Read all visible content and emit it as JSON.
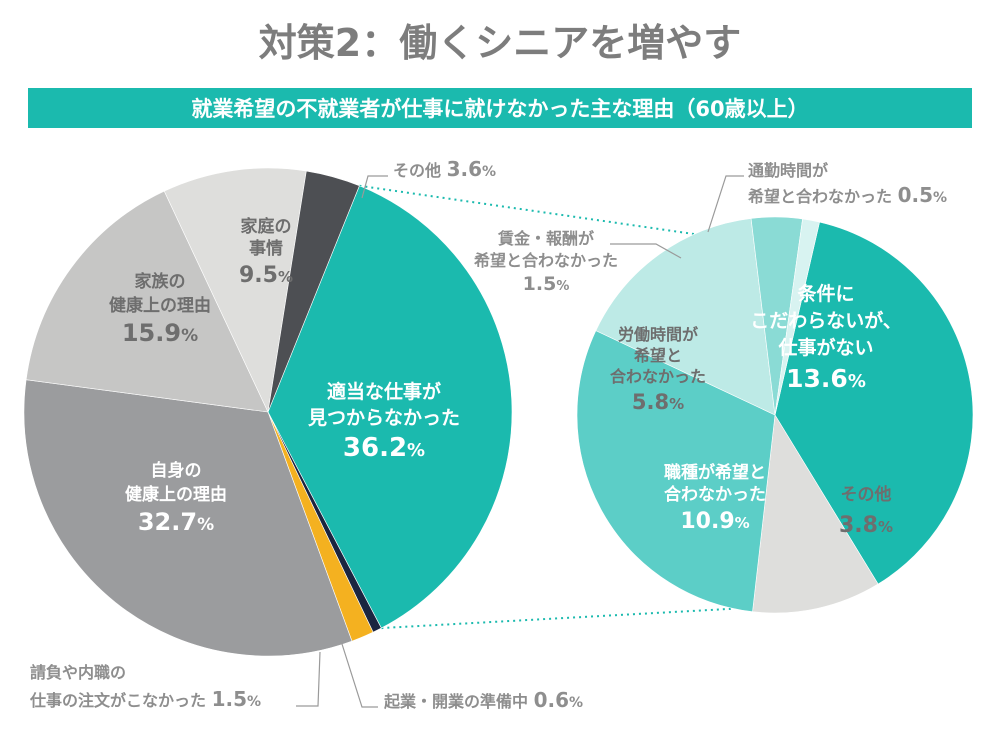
{
  "page": {
    "title": "対策2：働くシニアを増やす",
    "subtitle": "就業希望の不就業者が仕事に就けなかった主な理由（60歳以上）"
  },
  "colors": {
    "teal": "#1BBAAE",
    "banner": "#1BBAAE",
    "title_gray": "#7D7D7D",
    "label_gray": "#8E8E8E"
  },
  "chart_data": [
    {
      "type": "pie",
      "name": "main",
      "start_angle_deg": 22,
      "slices": [
        {
          "key": "s1",
          "label_lines": [
            "適当な仕事が",
            "見つからなかった"
          ],
          "value": 36.2,
          "value_text": "36.2",
          "color": "#1BBAAE",
          "label_color": "#ffffff"
        },
        {
          "key": "s2",
          "label_lines": [
            "起業・開業の準備中"
          ],
          "value": 0.6,
          "value_text": "0.6",
          "color": "#1B2540",
          "label_color": "#8E8E8E",
          "outside": true
        },
        {
          "key": "s3",
          "label_lines": [
            "請負や内職の",
            "仕事の注文がこなかった"
          ],
          "value": 1.5,
          "value_text": "1.5",
          "color": "#F4B120",
          "label_color": "#8E8E8E",
          "outside": true
        },
        {
          "key": "s4",
          "label_lines": [
            "自身の",
            "健康上の理由"
          ],
          "value": 32.7,
          "value_text": "32.7",
          "color": "#9B9C9E",
          "label_color": "#ffffff"
        },
        {
          "key": "s5",
          "label_lines": [
            "家族の",
            "健康上の理由"
          ],
          "value": 15.9,
          "value_text": "15.9",
          "color": "#C6C6C5",
          "label_color": "#6E6E6E"
        },
        {
          "key": "s6",
          "label_lines": [
            "家庭の",
            "事情"
          ],
          "value": 9.5,
          "value_text": "9.5",
          "color": "#DEDEDC",
          "label_color": "#6E6E6E"
        },
        {
          "key": "s7",
          "label_lines": [
            "その他"
          ],
          "value": 3.6,
          "value_text": "3.6",
          "color": "#4D4F53",
          "label_color": "#8E8E8E",
          "outside": true
        }
      ]
    },
    {
      "type": "pie",
      "name": "breakdown",
      "parent": "適当な仕事が見つからなかった",
      "start_angle_deg": 13,
      "slices": [
        {
          "key": "b1",
          "label_lines": [
            "条件に",
            "こだわらないが、",
            "仕事がない"
          ],
          "value": 13.6,
          "value_text": "13.6",
          "color": "#1BBAAE",
          "label_color": "#ffffff"
        },
        {
          "key": "b2",
          "label_lines": [
            "その他"
          ],
          "value": 3.8,
          "value_text": "3.8",
          "color": "#DEDEDC",
          "label_color": "#6E6E6E"
        },
        {
          "key": "b3",
          "label_lines": [
            "職種が希望と",
            "合わなかった"
          ],
          "value": 10.9,
          "value_text": "10.9",
          "color": "#5CCEC7",
          "label_color": "#ffffff"
        },
        {
          "key": "b4",
          "label_lines": [
            "労働時間が",
            "希望と",
            "合わなかった"
          ],
          "value": 5.8,
          "value_text": "5.8",
          "color": "#BDEAE6",
          "label_color": "#6E6E6E"
        },
        {
          "key": "b5",
          "label_lines": [
            "賃金・報酬が",
            "希望と合わなかった"
          ],
          "value": 1.5,
          "value_text": "1.5",
          "color": "#8ADBD5",
          "label_color": "#8E8E8E",
          "outside": true
        },
        {
          "key": "b6",
          "label_lines": [
            "通勤時間が",
            "希望と合わなかった"
          ],
          "value": 0.5,
          "value_text": "0.5",
          "color": "#D8F3F1",
          "label_color": "#8E8E8E",
          "outside": true
        }
      ]
    }
  ]
}
